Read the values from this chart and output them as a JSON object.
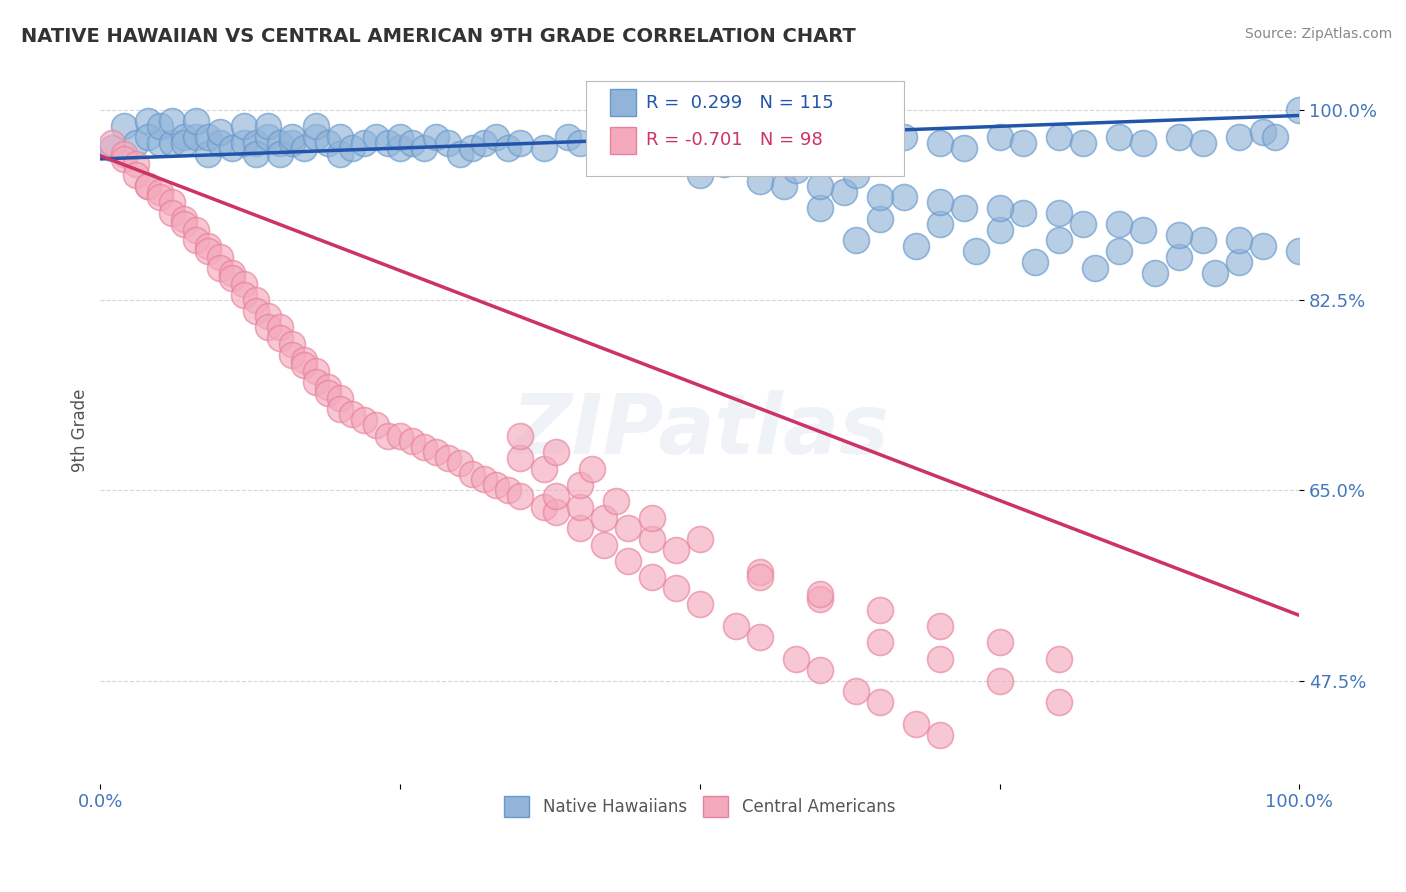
{
  "title": "NATIVE HAWAIIAN VS CENTRAL AMERICAN 9TH GRADE CORRELATION CHART",
  "source_text": "Source: ZipAtlas.com",
  "ylabel": "9th Grade",
  "watermark": "ZIPatlas",
  "xlim": [
    0.0,
    1.0
  ],
  "blue_color": "#92B4D8",
  "blue_edge": "#6699CC",
  "pink_color": "#F4AABC",
  "pink_edge": "#E8819A",
  "blue_line_color": "#2255AA",
  "pink_line_color": "#CC3366",
  "legend_R_blue": "0.299",
  "legend_N_blue": "115",
  "legend_R_pink": "-0.701",
  "legend_N_pink": "98",
  "legend_label_blue": "Native Hawaiians",
  "legend_label_pink": "Central Americans",
  "grid_color": "#CCCCCC",
  "title_color": "#333333",
  "axis_label_color": "#555555",
  "tick_label_color": "#4477BB",
  "background_color": "#FFFFFF",
  "blue_scatter_x": [
    0.01,
    0.02,
    0.03,
    0.04,
    0.04,
    0.05,
    0.05,
    0.06,
    0.06,
    0.07,
    0.07,
    0.08,
    0.08,
    0.09,
    0.09,
    0.1,
    0.1,
    0.11,
    0.12,
    0.12,
    0.13,
    0.13,
    0.14,
    0.14,
    0.15,
    0.15,
    0.16,
    0.16,
    0.17,
    0.18,
    0.18,
    0.19,
    0.2,
    0.2,
    0.21,
    0.22,
    0.23,
    0.24,
    0.25,
    0.25,
    0.26,
    0.27,
    0.28,
    0.29,
    0.3,
    0.31,
    0.32,
    0.33,
    0.34,
    0.35,
    0.37,
    0.39,
    0.4,
    0.42,
    0.43,
    0.45,
    0.47,
    0.48,
    0.5,
    0.52,
    0.55,
    0.58,
    0.6,
    0.62,
    0.65,
    0.67,
    0.7,
    0.72,
    0.75,
    0.77,
    0.8,
    0.82,
    0.85,
    0.87,
    0.9,
    0.92,
    0.95,
    0.97,
    0.98,
    1.0,
    0.63,
    0.68,
    0.73,
    0.78,
    0.83,
    0.88,
    0.93,
    0.6,
    0.65,
    0.7,
    0.75,
    0.8,
    0.85,
    0.9,
    0.95,
    0.57,
    0.62,
    0.67,
    0.72,
    0.77,
    0.82,
    0.87,
    0.92,
    0.97,
    0.5,
    0.55,
    0.6,
    0.65,
    0.7,
    0.75,
    0.8,
    0.85,
    0.9,
    0.95,
    1.0,
    0.52,
    0.58,
    0.63
  ],
  "blue_scatter_y": [
    0.965,
    0.985,
    0.97,
    0.99,
    0.975,
    0.97,
    0.985,
    0.97,
    0.99,
    0.975,
    0.97,
    0.975,
    0.99,
    0.96,
    0.975,
    0.97,
    0.98,
    0.965,
    0.97,
    0.985,
    0.97,
    0.96,
    0.975,
    0.985,
    0.97,
    0.96,
    0.97,
    0.975,
    0.965,
    0.975,
    0.985,
    0.97,
    0.96,
    0.975,
    0.965,
    0.97,
    0.975,
    0.97,
    0.965,
    0.975,
    0.97,
    0.965,
    0.975,
    0.97,
    0.96,
    0.965,
    0.97,
    0.975,
    0.965,
    0.97,
    0.965,
    0.975,
    0.97,
    0.965,
    0.975,
    0.97,
    0.965,
    0.975,
    0.97,
    0.975,
    0.965,
    0.97,
    0.975,
    0.97,
    0.965,
    0.975,
    0.97,
    0.965,
    0.975,
    0.97,
    0.975,
    0.97,
    0.975,
    0.97,
    0.975,
    0.97,
    0.975,
    0.98,
    0.975,
    1.0,
    0.88,
    0.875,
    0.87,
    0.86,
    0.855,
    0.85,
    0.85,
    0.91,
    0.9,
    0.895,
    0.89,
    0.88,
    0.87,
    0.865,
    0.86,
    0.93,
    0.925,
    0.92,
    0.91,
    0.905,
    0.895,
    0.89,
    0.88,
    0.875,
    0.94,
    0.935,
    0.93,
    0.92,
    0.915,
    0.91,
    0.905,
    0.895,
    0.885,
    0.88,
    0.87,
    0.95,
    0.945,
    0.94
  ],
  "pink_scatter_x": [
    0.01,
    0.02,
    0.02,
    0.03,
    0.03,
    0.04,
    0.04,
    0.05,
    0.05,
    0.06,
    0.06,
    0.07,
    0.07,
    0.08,
    0.08,
    0.09,
    0.09,
    0.1,
    0.1,
    0.11,
    0.11,
    0.12,
    0.12,
    0.13,
    0.13,
    0.14,
    0.14,
    0.15,
    0.15,
    0.16,
    0.16,
    0.17,
    0.17,
    0.18,
    0.18,
    0.19,
    0.19,
    0.2,
    0.2,
    0.21,
    0.22,
    0.23,
    0.24,
    0.25,
    0.26,
    0.27,
    0.28,
    0.29,
    0.3,
    0.31,
    0.32,
    0.33,
    0.34,
    0.35,
    0.37,
    0.38,
    0.4,
    0.42,
    0.44,
    0.46,
    0.48,
    0.5,
    0.53,
    0.55,
    0.58,
    0.6,
    0.63,
    0.65,
    0.68,
    0.7,
    0.38,
    0.4,
    0.42,
    0.44,
    0.46,
    0.48,
    0.35,
    0.37,
    0.4,
    0.43,
    0.46,
    0.5,
    0.55,
    0.6,
    0.35,
    0.38,
    0.41,
    0.55,
    0.6,
    0.65,
    0.7,
    0.75,
    0.8,
    0.65,
    0.7,
    0.75,
    0.8
  ],
  "pink_scatter_y": [
    0.97,
    0.96,
    0.955,
    0.95,
    0.94,
    0.93,
    0.93,
    0.925,
    0.92,
    0.915,
    0.905,
    0.9,
    0.895,
    0.89,
    0.88,
    0.875,
    0.87,
    0.865,
    0.855,
    0.85,
    0.845,
    0.84,
    0.83,
    0.825,
    0.815,
    0.81,
    0.8,
    0.8,
    0.79,
    0.785,
    0.775,
    0.77,
    0.765,
    0.76,
    0.75,
    0.745,
    0.74,
    0.735,
    0.725,
    0.72,
    0.715,
    0.71,
    0.7,
    0.7,
    0.695,
    0.69,
    0.685,
    0.68,
    0.675,
    0.665,
    0.66,
    0.655,
    0.65,
    0.645,
    0.635,
    0.63,
    0.615,
    0.6,
    0.585,
    0.57,
    0.56,
    0.545,
    0.525,
    0.515,
    0.495,
    0.485,
    0.465,
    0.455,
    0.435,
    0.425,
    0.645,
    0.635,
    0.625,
    0.615,
    0.605,
    0.595,
    0.68,
    0.67,
    0.655,
    0.64,
    0.625,
    0.605,
    0.575,
    0.55,
    0.7,
    0.685,
    0.67,
    0.57,
    0.555,
    0.54,
    0.525,
    0.51,
    0.495,
    0.51,
    0.495,
    0.475,
    0.455
  ],
  "pink_line_x0": 0.0,
  "pink_line_y0": 0.958,
  "pink_line_x1": 1.0,
  "pink_line_y1": 0.535,
  "blue_line_x0": 0.0,
  "blue_line_y0": 0.955,
  "blue_line_x1": 1.0,
  "blue_line_y1": 0.995,
  "ymin": 0.38,
  "ymax": 1.03,
  "ytick_positions": [
    0.475,
    0.65,
    0.825,
    1.0
  ],
  "ytick_labels": [
    "47.5%",
    "65.0%",
    "82.5%",
    "100.0%"
  ]
}
